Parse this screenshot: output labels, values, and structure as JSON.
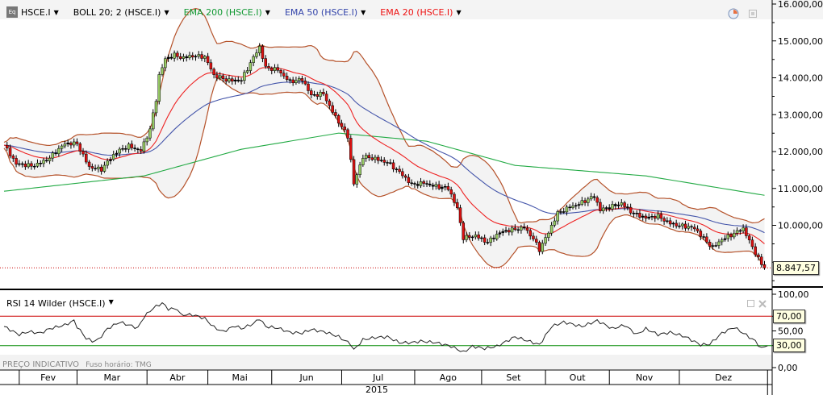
{
  "header": {
    "symbol": "HSCE.I",
    "indicators": [
      {
        "label": "BOLL 20; 2 (HSCE.I)",
        "color": "#000000"
      },
      {
        "label": "EMA 200 (HSCE.I)",
        "color": "#119933"
      },
      {
        "label": "EMA 50 (HSCE.I)",
        "color": "#3344aa"
      },
      {
        "label": "EMA 20 (HSCE.I)",
        "color": "#ee1111"
      }
    ]
  },
  "rsi_panel": {
    "title": "RSI 14 Wilder (HSCE.I)",
    "upper_label": "70,00",
    "lower_label": "30,00"
  },
  "footer": {
    "note": "PREÇO INDICATIVO",
    "timezone": "Fuso horário: TMG"
  },
  "last_price_label": "8.847,57",
  "colors": {
    "up": "#99cc66",
    "down": "#dd1111",
    "boll": "#b5522a",
    "ema200": "#22aa44",
    "ema50": "#4455aa",
    "ema20": "#ee2222",
    "rsi_upper": "#cc0000",
    "rsi_lower": "#008800"
  },
  "chart_data": [
    {
      "type": "candlestick",
      "title": "HSCE.I",
      "x_axis": {
        "year": "2015",
        "months": [
          "Fev",
          "Mar",
          "Abr",
          "Mai",
          "Jun",
          "Jul",
          "Ago",
          "Set",
          "Out",
          "Nov",
          "Dez"
        ],
        "month_start_day": [
          5,
          24,
          47,
          67,
          88,
          111,
          135,
          157,
          178,
          199,
          222
        ]
      },
      "y_axis": {
        "ticks": [
          "16.000,00",
          "15.000,00",
          "14.000,00",
          "13.000,00",
          "12.000,00",
          "11.000,00",
          "10.000,00",
          "9.000,00"
        ],
        "range": [
          8500,
          16100
        ]
      },
      "closes": [
        [
          0,
          12171
        ],
        [
          4,
          11624
        ],
        [
          9,
          11624
        ],
        [
          15,
          11843
        ],
        [
          20,
          12171
        ],
        [
          24,
          12215
        ],
        [
          28,
          11624
        ],
        [
          32,
          11514
        ],
        [
          37,
          11952
        ],
        [
          41,
          12171
        ],
        [
          45,
          12062
        ],
        [
          48,
          12609
        ],
        [
          50,
          13374
        ],
        [
          51,
          14031
        ],
        [
          53,
          14468
        ],
        [
          56,
          14621
        ],
        [
          58,
          14578
        ],
        [
          62,
          14621
        ],
        [
          66,
          14534
        ],
        [
          69,
          14031
        ],
        [
          73,
          13965
        ],
        [
          78,
          13965
        ],
        [
          84,
          14797
        ],
        [
          86,
          14250
        ],
        [
          90,
          14250
        ],
        [
          94,
          13921
        ],
        [
          98,
          13921
        ],
        [
          101,
          13484
        ],
        [
          105,
          13593
        ],
        [
          107,
          13265
        ],
        [
          110,
          12828
        ],
        [
          113,
          12390
        ],
        [
          115,
          11077
        ],
        [
          118,
          11843
        ],
        [
          122,
          11843
        ],
        [
          126,
          11733
        ],
        [
          130,
          11405
        ],
        [
          134,
          11077
        ],
        [
          138,
          11187
        ],
        [
          142,
          11077
        ],
        [
          146,
          10968
        ],
        [
          149,
          10421
        ],
        [
          151,
          9655
        ],
        [
          155,
          9764
        ],
        [
          159,
          9545
        ],
        [
          163,
          9764
        ],
        [
          167,
          9874
        ],
        [
          171,
          9983
        ],
        [
          174,
          9655
        ],
        [
          176,
          9327
        ],
        [
          179,
          9764
        ],
        [
          182,
          10312
        ],
        [
          186,
          10530
        ],
        [
          190,
          10640
        ],
        [
          194,
          10749
        ],
        [
          196,
          10377
        ],
        [
          200,
          10530
        ],
        [
          203,
          10640
        ],
        [
          207,
          10312
        ],
        [
          211,
          10158
        ],
        [
          215,
          10246
        ],
        [
          219,
          10093
        ],
        [
          223,
          9983
        ],
        [
          227,
          9874
        ],
        [
          231,
          9545
        ],
        [
          233,
          9436
        ],
        [
          236,
          9655
        ],
        [
          240,
          9764
        ],
        [
          243,
          9874
        ],
        [
          245,
          9545
        ],
        [
          248,
          9108
        ],
        [
          250,
          8848
        ]
      ],
      "ema200": [
        [
          0,
          10924
        ],
        [
          46,
          11340
        ],
        [
          78,
          12062
        ],
        [
          110,
          12500
        ],
        [
          139,
          12280
        ],
        [
          168,
          11624
        ],
        [
          211,
          11340
        ],
        [
          250,
          10814
        ]
      ],
      "boll": {
        "period": 20,
        "stddev": 2
      },
      "ema_periods": [
        20,
        50
      ],
      "last": 8847.57
    },
    {
      "type": "line",
      "title": "RSI 14 Wilder (HSCE.I)",
      "y_axis": {
        "ticks": [
          "100,00",
          "70,00",
          "50,00",
          "30,00",
          "0,00"
        ],
        "range": [
          0,
          100
        ]
      },
      "levels": [
        70,
        30
      ],
      "values": [
        [
          0,
          56
        ],
        [
          4,
          47
        ],
        [
          5,
          45
        ],
        [
          8,
          49
        ],
        [
          12,
          47
        ],
        [
          15,
          53
        ],
        [
          20,
          58
        ],
        [
          23,
          64
        ],
        [
          24,
          56
        ],
        [
          27,
          40
        ],
        [
          29,
          36
        ],
        [
          31,
          38
        ],
        [
          34,
          53
        ],
        [
          38,
          62
        ],
        [
          41,
          58
        ],
        [
          44,
          54
        ],
        [
          46,
          69
        ],
        [
          49,
          81
        ],
        [
          52,
          88
        ],
        [
          54,
          80
        ],
        [
          57,
          80
        ],
        [
          58,
          72
        ],
        [
          62,
          72
        ],
        [
          66,
          67
        ],
        [
          69,
          55
        ],
        [
          72,
          49
        ],
        [
          76,
          57
        ],
        [
          78,
          53
        ],
        [
          82,
          60
        ],
        [
          84,
          67
        ],
        [
          86,
          56
        ],
        [
          90,
          54
        ],
        [
          94,
          48
        ],
        [
          98,
          47
        ],
        [
          101,
          52
        ],
        [
          106,
          48
        ],
        [
          110,
          42
        ],
        [
          114,
          32
        ],
        [
          115,
          24
        ],
        [
          118,
          38
        ],
        [
          122,
          41
        ],
        [
          126,
          42
        ],
        [
          130,
          34
        ],
        [
          134,
          34
        ],
        [
          137,
          36
        ],
        [
          142,
          34
        ],
        [
          147,
          29
        ],
        [
          151,
          21
        ],
        [
          154,
          29
        ],
        [
          158,
          26
        ],
        [
          162,
          29
        ],
        [
          168,
          42
        ],
        [
          174,
          34
        ],
        [
          176,
          31
        ],
        [
          180,
          56
        ],
        [
          184,
          62
        ],
        [
          190,
          56
        ],
        [
          195,
          64
        ],
        [
          200,
          53
        ],
        [
          204,
          58
        ],
        [
          208,
          45
        ],
        [
          211,
          53
        ],
        [
          215,
          45
        ],
        [
          219,
          48
        ],
        [
          224,
          42
        ],
        [
          229,
          31
        ],
        [
          232,
          32
        ],
        [
          236,
          47
        ],
        [
          240,
          55
        ],
        [
          243,
          47
        ],
        [
          247,
          36
        ],
        [
          249,
          26
        ],
        [
          251,
          31
        ]
      ]
    }
  ]
}
